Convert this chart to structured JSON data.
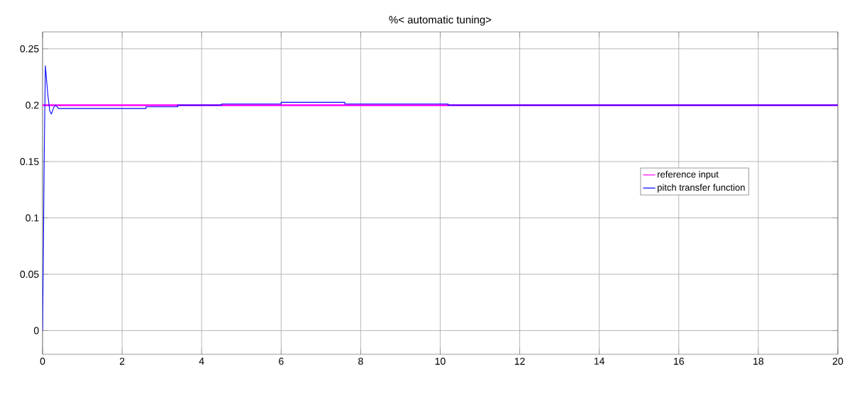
{
  "chart_data": {
    "type": "line",
    "title": "%< automatic tuning>",
    "xlim": [
      0,
      20
    ],
    "ylim": [
      -0.021,
      0.265
    ],
    "xticks": [
      0,
      2,
      4,
      6,
      8,
      10,
      12,
      14,
      16,
      18,
      20
    ],
    "yticks": [
      0,
      0.05,
      0.1,
      0.15,
      0.2,
      0.25
    ],
    "grid": true,
    "legend": "right",
    "marker": "none",
    "line_style": "solid",
    "series": [
      {
        "name": "reference input",
        "color": "#ff00ff",
        "x": [
          0,
          20
        ],
        "values": [
          0.2,
          0.2
        ]
      },
      {
        "name": "pitch transfer function",
        "color": "#0000ff",
        "x": [
          0,
          0.02,
          0.04,
          0.07,
          0.13,
          0.18,
          0.22,
          0.28,
          0.33,
          0.4,
          2.6,
          2.6,
          3.4,
          3.4,
          4.5,
          4.5,
          6,
          6,
          7.6,
          7.6,
          10.2,
          10.2,
          20
        ],
        "values": [
          0,
          0.07,
          0.15,
          0.235,
          0.21,
          0.195,
          0.192,
          0.198,
          0.2,
          0.197,
          0.197,
          0.1985,
          0.1985,
          0.2,
          0.2,
          0.201,
          0.201,
          0.2025,
          0.2025,
          0.201,
          0.201,
          0.2,
          0.2
        ]
      }
    ]
  }
}
